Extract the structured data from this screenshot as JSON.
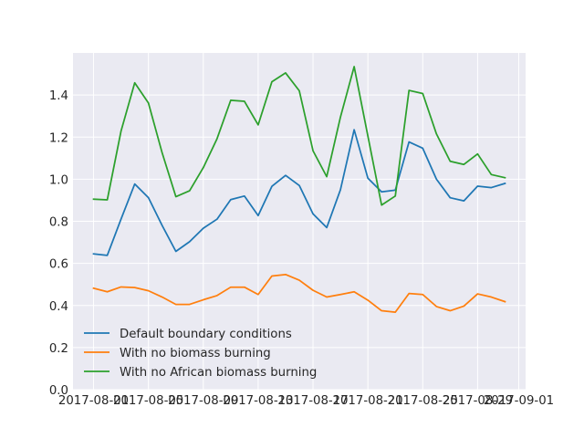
{
  "chart_data": {
    "type": "line",
    "title": "",
    "xlabel": "",
    "ylabel": "",
    "grid": true,
    "legend_position": "lower-left",
    "x": [
      "2017-08-01",
      "2017-08-02",
      "2017-08-03",
      "2017-08-04",
      "2017-08-05",
      "2017-08-06",
      "2017-08-07",
      "2017-08-08",
      "2017-08-09",
      "2017-08-10",
      "2017-08-11",
      "2017-08-12",
      "2017-08-13",
      "2017-08-14",
      "2017-08-15",
      "2017-08-16",
      "2017-08-17",
      "2017-08-18",
      "2017-08-19",
      "2017-08-20",
      "2017-08-21",
      "2017-08-22",
      "2017-08-23",
      "2017-08-24",
      "2017-08-25",
      "2017-08-26",
      "2017-08-27",
      "2017-08-28",
      "2017-08-29",
      "2017-08-30",
      "2017-08-31"
    ],
    "series": [
      {
        "name": "Default boundary conditions",
        "color": "#1f77b4",
        "values": [
          0.645,
          0.638,
          0.81,
          0.977,
          0.912,
          0.78,
          0.657,
          0.703,
          0.767,
          0.81,
          0.903,
          0.92,
          0.827,
          0.966,
          1.018,
          0.97,
          0.835,
          0.77,
          0.95,
          1.235,
          1.005,
          0.94,
          0.948,
          1.177,
          1.147,
          1.0,
          0.912,
          0.897,
          0.967,
          0.96,
          0.98
        ]
      },
      {
        "name": "With no biomass burning",
        "color": "#ff7f0e",
        "values": [
          0.482,
          0.465,
          0.488,
          0.485,
          0.47,
          0.44,
          0.405,
          0.405,
          0.427,
          0.447,
          0.487,
          0.487,
          0.452,
          0.54,
          0.547,
          0.52,
          0.472,
          0.44,
          0.452,
          0.465,
          0.425,
          0.375,
          0.368,
          0.457,
          0.452,
          0.395,
          0.375,
          0.397,
          0.455,
          0.44,
          0.418
        ]
      },
      {
        "name": "With no African biomass burning",
        "color": "#2ca02c",
        "values": [
          0.905,
          0.902,
          1.228,
          1.458,
          1.362,
          1.125,
          0.917,
          0.945,
          1.055,
          1.192,
          1.375,
          1.37,
          1.258,
          1.463,
          1.505,
          1.42,
          1.135,
          1.012,
          1.295,
          1.535,
          1.205,
          0.877,
          0.92,
          1.422,
          1.407,
          1.215,
          1.085,
          1.07,
          1.12,
          1.022,
          1.007
        ]
      }
    ],
    "ylim": [
      0,
      1.6
    ],
    "yticks": [
      0.0,
      0.2,
      0.4,
      0.6,
      0.8,
      1.0,
      1.2,
      1.4
    ],
    "ytick_labels": [
      "0.0",
      "0.2",
      "0.4",
      "0.6",
      "0.8",
      "1.0",
      "1.2",
      "1.4"
    ],
    "xtick_labels": [
      "2017-08-01",
      "2017-08-05",
      "2017-08-09",
      "2017-08-13",
      "2017-08-17",
      "2017-08-21",
      "2017-08-25",
      "2017-08-29",
      "2017-09-01"
    ],
    "xtick_dates": [
      "2017-08-01",
      "2017-08-05",
      "2017-08-09",
      "2017-08-13",
      "2017-08-17",
      "2017-08-21",
      "2017-08-25",
      "2017-08-29",
      "2017-09-01"
    ]
  },
  "colors": {
    "plot_background": "#eaeaf2",
    "grid": "#ffffff",
    "text": "#262626"
  }
}
